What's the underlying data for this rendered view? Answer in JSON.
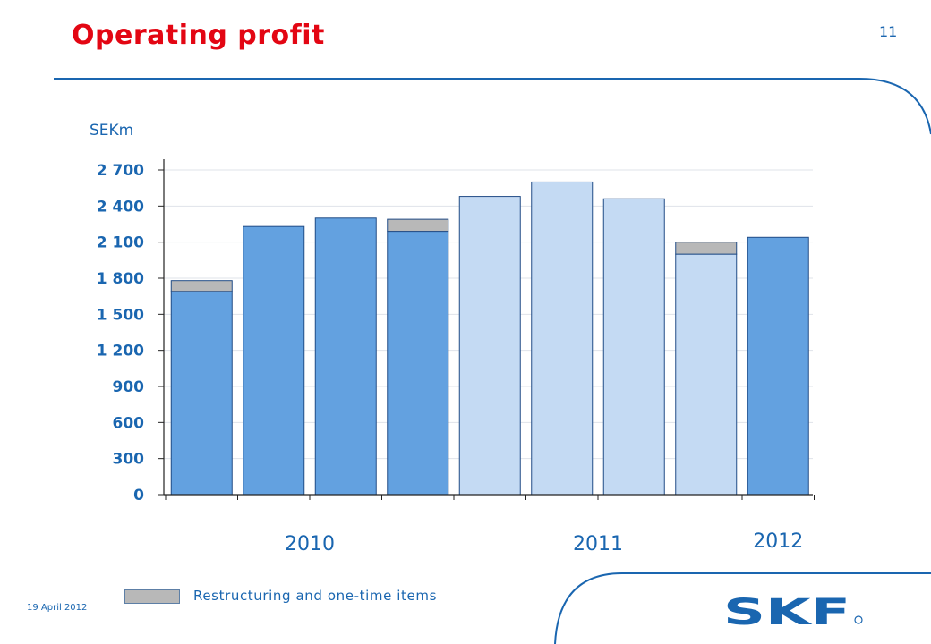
{
  "page": {
    "title": "Operating profit",
    "page_number": "11",
    "unit_label": "SEKm",
    "footer_date": "19 April 2012",
    "legend_label": "Restructuring and one-time items",
    "logo_text": "SKF"
  },
  "colors": {
    "title": "#e30613",
    "brand_blue": "#1a66b0",
    "bar_dark": "#63a1e0",
    "bar_light": "#c4daf3",
    "restructuring": "#b8b8b8",
    "bar_border": "#214c86",
    "gridline": "#dfe3ea"
  },
  "chart_data": {
    "type": "bar",
    "stacked": true,
    "unit": "SEKm",
    "ylim": [
      0,
      2700
    ],
    "yticks": [
      0,
      300,
      600,
      900,
      1200,
      1500,
      1800,
      2100,
      2400,
      2700
    ],
    "ytick_labels": [
      "0",
      "300",
      "600",
      "900",
      "1 200",
      "1 500",
      "1 800",
      "2 100",
      "2 400",
      "2 700"
    ],
    "grid": true,
    "legend_position": "bottom-left",
    "year_labels": [
      "2010",
      "2011",
      "2012"
    ],
    "bars": [
      {
        "year": "2010",
        "operating_profit": 1690,
        "restructuring": 90,
        "shade": "dark"
      },
      {
        "year": "2010",
        "operating_profit": 2230,
        "restructuring": 0,
        "shade": "dark"
      },
      {
        "year": "2010",
        "operating_profit": 2300,
        "restructuring": 0,
        "shade": "dark"
      },
      {
        "year": "2010",
        "operating_profit": 2190,
        "restructuring": 100,
        "shade": "dark"
      },
      {
        "year": "2011",
        "operating_profit": 2480,
        "restructuring": 0,
        "shade": "light"
      },
      {
        "year": "2011",
        "operating_profit": 2600,
        "restructuring": 0,
        "shade": "light"
      },
      {
        "year": "2011",
        "operating_profit": 2460,
        "restructuring": 0,
        "shade": "light"
      },
      {
        "year": "2011",
        "operating_profit": 2000,
        "restructuring": 100,
        "shade": "light"
      },
      {
        "year": "2012",
        "operating_profit": 2140,
        "restructuring": 0,
        "shade": "dark"
      }
    ]
  }
}
